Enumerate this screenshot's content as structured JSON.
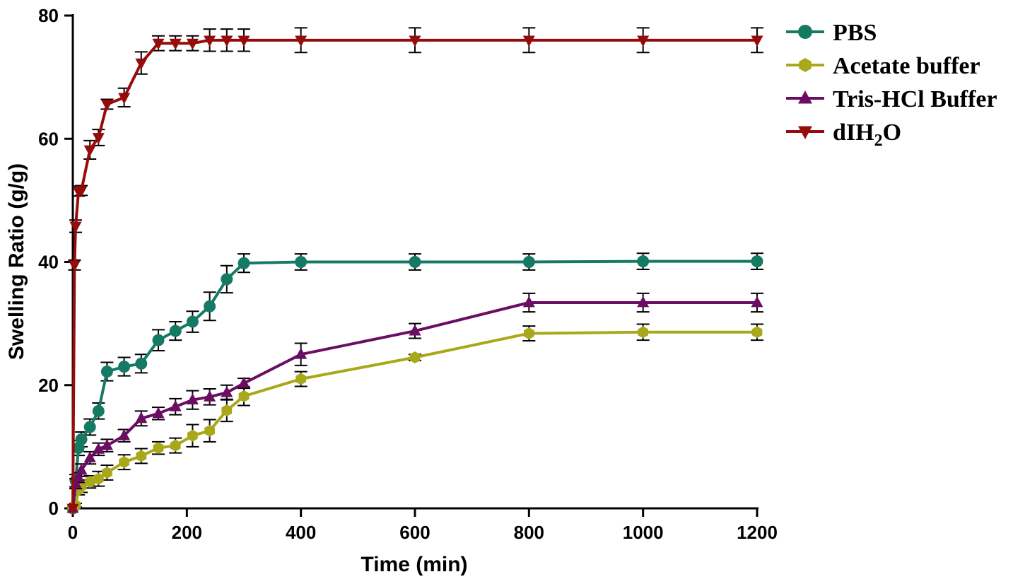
{
  "chart_data": {
    "type": "line",
    "title": "",
    "xlabel": "Time (min)",
    "ylabel": "Swelling Ratio (g/g)",
    "xlim": [
      0,
      1200
    ],
    "ylim": [
      0,
      80
    ],
    "xticks": [
      0,
      200,
      400,
      600,
      800,
      1000,
      1200
    ],
    "yticks": [
      0,
      20,
      40,
      60,
      80
    ],
    "grid": false,
    "legend_position": "top-right",
    "series": [
      {
        "name": "PBS",
        "color": "#157a63",
        "marker": "circle",
        "x": [
          0,
          5,
          10,
          15,
          30,
          45,
          60,
          90,
          120,
          150,
          180,
          210,
          240,
          270,
          300,
          400,
          600,
          800,
          1000,
          1200
        ],
        "y": [
          0,
          4.5,
          9.8,
          11.2,
          13.2,
          15.8,
          22.2,
          23.0,
          23.5,
          27.3,
          28.8,
          30.3,
          32.8,
          37.2,
          39.8,
          40.0,
          40.0,
          40.0,
          40.1,
          40.1
        ],
        "err": [
          0,
          1.0,
          1.2,
          1.2,
          1.3,
          1.3,
          1.5,
          1.5,
          1.5,
          1.7,
          1.5,
          1.7,
          2.3,
          2.2,
          1.5,
          1.3,
          1.3,
          1.3,
          1.3,
          1.3
        ]
      },
      {
        "name": "Acetate buffer",
        "color": "#a8a81a",
        "marker": "hexagon",
        "x": [
          0,
          5,
          10,
          15,
          30,
          45,
          60,
          90,
          120,
          150,
          180,
          210,
          240,
          270,
          300,
          400,
          600,
          800,
          1000,
          1200
        ],
        "y": [
          0,
          0.5,
          3.0,
          3.6,
          4.3,
          4.8,
          5.8,
          7.5,
          8.5,
          9.8,
          10.2,
          11.8,
          12.6,
          15.9,
          18.2,
          21.0,
          24.5,
          28.4,
          28.6,
          28.6
        ],
        "err": [
          0,
          0.3,
          0.8,
          1.0,
          1.0,
          1.2,
          1.2,
          1.2,
          1.2,
          1.0,
          1.2,
          1.8,
          1.8,
          1.8,
          1.5,
          1.2,
          0.5,
          1.2,
          1.3,
          1.3
        ]
      },
      {
        "name": "Tris-HCl Buffer",
        "color": "#6b0d62",
        "marker": "triangle-up",
        "x": [
          0,
          5,
          10,
          15,
          30,
          45,
          60,
          90,
          120,
          150,
          180,
          210,
          240,
          270,
          300,
          400,
          600,
          800,
          1000,
          1200
        ],
        "y": [
          0,
          4.0,
          5.0,
          6.2,
          8.2,
          9.6,
          10.2,
          11.8,
          14.6,
          15.4,
          16.5,
          17.6,
          18.1,
          18.8,
          20.3,
          25.0,
          28.8,
          33.4,
          33.4,
          33.4
        ],
        "err": [
          0,
          0.8,
          0.8,
          1.0,
          1.0,
          1.0,
          1.0,
          1.0,
          1.2,
          1.0,
          1.3,
          1.5,
          1.3,
          1.2,
          0.8,
          1.8,
          1.2,
          1.5,
          1.5,
          1.5
        ]
      },
      {
        "name": "dIH₂O",
        "legend_main": "dIH",
        "legend_sub": "2",
        "legend_tail": "O",
        "color": "#960c0c",
        "marker": "triangle-down",
        "x": [
          0,
          3,
          5,
          10,
          15,
          30,
          45,
          60,
          90,
          120,
          150,
          180,
          210,
          240,
          270,
          300,
          400,
          600,
          800,
          1000,
          1200
        ],
        "y": [
          0,
          39.5,
          45.8,
          51.5,
          51.6,
          58.2,
          60.2,
          65.6,
          66.7,
          72.3,
          75.5,
          75.5,
          75.5,
          76.0,
          76.0,
          76.0,
          76.0,
          76.0,
          76.0,
          76.0,
          76.0
        ],
        "err": [
          0,
          0.8,
          1.0,
          0.8,
          0.8,
          1.5,
          1.3,
          0.8,
          1.5,
          1.8,
          1.2,
          1.2,
          1.2,
          1.8,
          1.8,
          1.8,
          2.0,
          2.0,
          2.0,
          2.0,
          2.0
        ]
      }
    ]
  }
}
